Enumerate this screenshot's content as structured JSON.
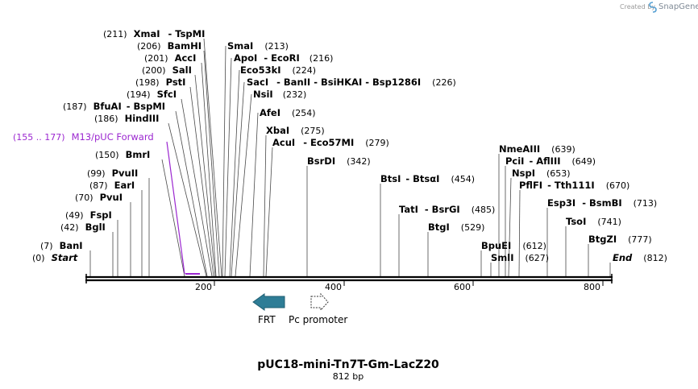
{
  "credit": {
    "prefix": "Created by",
    "brand": "SnapGene"
  },
  "map": {
    "title": "pUC18-mini-Tn7T-Gm-LacZ20",
    "length_label": "812 bp",
    "length": 812,
    "ticks": [
      "200",
      "400",
      "600",
      "800"
    ],
    "backbone_color": "#000000"
  },
  "labels": [
    {
      "num": "(211)",
      "name": "XmaI",
      "extra": "- TspMI"
    },
    {
      "num": "(206)",
      "name": "BamHI",
      "extra": ""
    },
    {
      "num": "(201)",
      "name": "AccI",
      "extra": ""
    },
    {
      "num": "(200)",
      "name": "SalI",
      "extra": ""
    },
    {
      "num": "(198)",
      "name": "PstI",
      "extra": ""
    },
    {
      "num": "(194)",
      "name": "SfcI",
      "extra": ""
    },
    {
      "num": "(187)",
      "name": "BfuAI",
      "extra": "- BspMI"
    },
    {
      "num": "(186)",
      "name": "HindIII",
      "extra": ""
    },
    {
      "num": "(155 .. 177)",
      "name": "M13/pUC Forward",
      "extra": ""
    },
    {
      "num": "(150)",
      "name": "BmrI",
      "extra": ""
    },
    {
      "num": "(99)",
      "name": "PvuII",
      "extra": ""
    },
    {
      "num": "(87)",
      "name": "EarI",
      "extra": ""
    },
    {
      "num": "(70)",
      "name": "PvuI",
      "extra": ""
    },
    {
      "num": "(49)",
      "name": "FspI",
      "extra": ""
    },
    {
      "num": "(42)",
      "name": "BglI",
      "extra": ""
    },
    {
      "num": "(7)",
      "name": "BanI",
      "extra": ""
    },
    {
      "num": "(0)",
      "name": "Start",
      "extra": ""
    },
    {
      "name": "SmaI",
      "extra": "",
      "num": "(213)"
    },
    {
      "name": "ApoI",
      "extra": "- EcoRI",
      "num": "(216)"
    },
    {
      "name": "Eco53kI",
      "extra": "",
      "num": "(224)"
    },
    {
      "name": "SacI",
      "extra": "- BanII - BsiHKAI - Bsp1286I",
      "num": "(226)"
    },
    {
      "name": "NsiI",
      "extra": "",
      "num": "(232)"
    },
    {
      "name": "AfeI",
      "extra": "",
      "num": "(254)"
    },
    {
      "name": "XbaI",
      "extra": "",
      "num": "(275)"
    },
    {
      "name": "AcuI",
      "extra": "- Eco57MI",
      "num": "(279)"
    },
    {
      "name": "BsrDI",
      "extra": "",
      "num": "(342)"
    },
    {
      "name": "BtsI",
      "extra": "- BtsαI",
      "num": "(454)"
    },
    {
      "name": "TatI",
      "extra": "- BsrGI",
      "num": "(485)"
    },
    {
      "name": "BtgI",
      "extra": "",
      "num": "(529)"
    },
    {
      "name": "BpuEI",
      "extra": "",
      "num": "(612)"
    },
    {
      "name": "SmlI",
      "extra": "",
      "num": "(627)"
    },
    {
      "name": "NmeAIII",
      "extra": "",
      "num": "(639)"
    },
    {
      "name": "PciI",
      "extra": "- AflIII",
      "num": "(649)"
    },
    {
      "name": "NspI",
      "extra": "",
      "num": "(653)"
    },
    {
      "name": "PflFI",
      "extra": "- Tth111I",
      "num": "(670)"
    },
    {
      "name": "Esp3I",
      "extra": "- BsmBI",
      "num": "(713)"
    },
    {
      "name": "TsoI",
      "extra": "",
      "num": "(741)"
    },
    {
      "name": "BtgZI",
      "extra": "",
      "num": "(777)"
    },
    {
      "name": "End",
      "extra": "",
      "num": "(812)"
    }
  ],
  "features": {
    "frt": {
      "label": "FRT",
      "color": "#2e7d96",
      "direction": "reverse"
    },
    "pc_promoter": {
      "label": "Pc promoter",
      "color": "#ffffff",
      "direction": "forward"
    }
  }
}
